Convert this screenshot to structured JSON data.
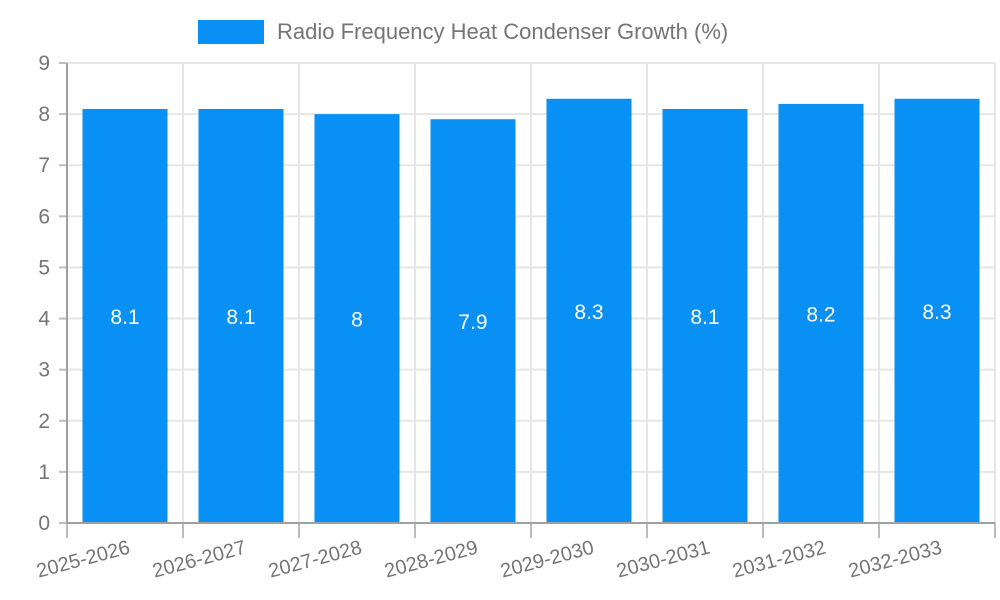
{
  "chart_data": {
    "type": "bar",
    "title": "Radio Frequency Heat Condenser Growth (%)",
    "categories": [
      "2025-2026",
      "2026-2027",
      "2027-2028",
      "2028-2029",
      "2029-2030",
      "2030-2031",
      "2031-2032",
      "2032-2033"
    ],
    "values": [
      8.1,
      8.1,
      8,
      7.9,
      8.3,
      8.1,
      8.2,
      8.3
    ],
    "bar_labels": [
      "8.1",
      "8.1",
      "8",
      "7.9",
      "8.3",
      "8.1",
      "8.2",
      "8.3"
    ],
    "xlabel": "",
    "ylabel": "",
    "ylim": [
      0,
      9
    ],
    "ytick_interval": 1,
    "ytick_labels": [
      "0",
      "1",
      "2",
      "3",
      "4",
      "5",
      "6",
      "7",
      "8",
      "9"
    ],
    "grid": true,
    "legend_position": "top-center",
    "x_label_rotation_deg": -15,
    "colors": {
      "bar": "#0990f5",
      "bar_label": "#ffffff",
      "text": "#757575",
      "grid": "#e6e6e6",
      "axis": "#a0a0a0",
      "tick": "#bdbdbd",
      "background": "#ffffff"
    }
  }
}
